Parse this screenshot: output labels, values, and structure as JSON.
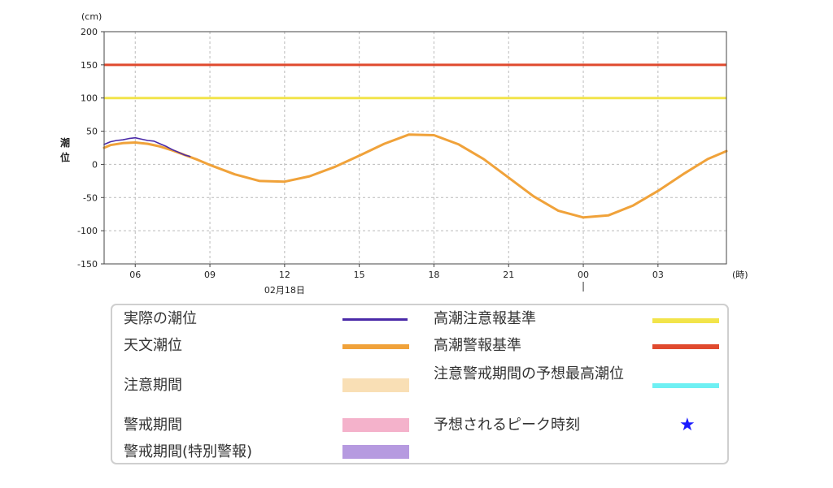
{
  "chart_data": {
    "type": "line",
    "ylabel": "潮位",
    "y_unit": "(cm)",
    "x_unit": "(時)",
    "ylim": [
      -150,
      200
    ],
    "yticks": [
      200,
      150,
      100,
      50,
      0,
      -50,
      -100,
      -150
    ],
    "xlim_hours": [
      4.75,
      29.75
    ],
    "xtick_labels": [
      "06",
      "09",
      "12",
      "15",
      "18",
      "21",
      "00",
      "03"
    ],
    "xtick_hours": [
      6,
      9,
      12,
      15,
      18,
      21,
      24,
      27
    ],
    "date_label": "02月18日",
    "date_label_hour": 12,
    "day_marker_hour": 24,
    "grid": true,
    "thresholds": [
      {
        "name": "高潮警報基準",
        "value": 150,
        "color": "#e04a2e"
      },
      {
        "name": "高潮注意報基準",
        "value": 100,
        "color": "#f2e44a"
      }
    ],
    "series": [
      {
        "name": "天文潮位",
        "color": "#f0a23a",
        "x": [
          4.75,
          5,
          5.5,
          6,
          6.5,
          7,
          7.5,
          8,
          8.5,
          9,
          10,
          11,
          12,
          13,
          14,
          15,
          16,
          17,
          18,
          19,
          20,
          21,
          22,
          23,
          24,
          25,
          26,
          27,
          28,
          29,
          29.75
        ],
        "y": [
          25,
          29,
          32,
          33,
          31,
          27,
          21,
          14,
          7,
          -1,
          -15,
          -25,
          -26,
          -18,
          -4,
          13,
          31,
          45,
          44,
          30,
          8,
          -20,
          -48,
          -70,
          -80,
          -77,
          -62,
          -40,
          -15,
          8,
          20
        ]
      },
      {
        "name": "実際の潮位",
        "color": "#4a2aa8",
        "x": [
          4.75,
          5,
          5.25,
          5.5,
          5.75,
          6,
          6.25,
          6.5,
          6.75,
          7,
          7.25,
          7.5,
          7.75,
          8,
          8.2
        ],
        "y": [
          30,
          34,
          36,
          37,
          39,
          40,
          38,
          36,
          35,
          31,
          27,
          22,
          18,
          14,
          12
        ]
      }
    ],
    "legend": [
      {
        "label": "実際の潮位",
        "color": "#4a2aa8",
        "kind": "line"
      },
      {
        "label": "高潮注意報基準",
        "color": "#f2e44a",
        "kind": "thick"
      },
      {
        "label": "天文潮位",
        "color": "#f0a23a",
        "kind": "thick"
      },
      {
        "label": "高潮警報基準",
        "color": "#e04a2e",
        "kind": "thick"
      },
      {
        "label": "注意期間",
        "color": "#f9dfb5",
        "kind": "block"
      },
      {
        "label": "注意警戒期間の予想最高潮位",
        "color": "#6ef0f3",
        "kind": "thick"
      },
      {
        "label": "警戒期間",
        "color": "#f4b2cb",
        "kind": "block"
      },
      {
        "label": "予想されるピーク時刻",
        "color": "#1a1aff",
        "kind": "star"
      },
      {
        "label": "警戒期間(特別警報)",
        "color": "#b69ae0",
        "kind": "block"
      }
    ]
  }
}
